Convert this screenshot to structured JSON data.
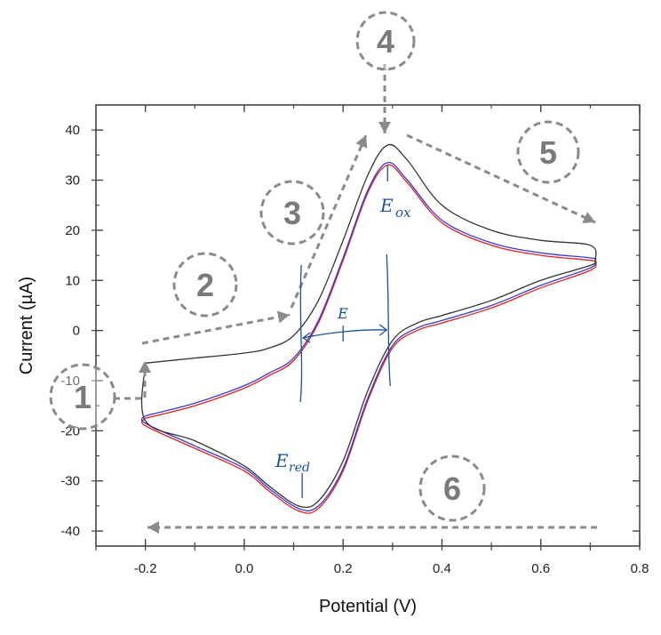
{
  "chart_data": {
    "type": "line",
    "title": "",
    "xlabel": "Potential (V)",
    "ylabel": "Current (µA)",
    "xlim": [
      -0.3,
      0.8
    ],
    "ylim": [
      -43,
      45
    ],
    "xticks": [
      "-0.2",
      "0.0",
      "0.2",
      "0.4",
      "0.6",
      "0.8"
    ],
    "xtick_values": [
      -0.2,
      0.0,
      0.2,
      0.4,
      0.6,
      0.8
    ],
    "yticks": [
      "40",
      "30",
      "20",
      "10",
      "0",
      "-10",
      "-20",
      "-30",
      "-40"
    ],
    "ytick_values": [
      40,
      30,
      20,
      10,
      0,
      -10,
      -20,
      -30,
      -40
    ],
    "grid": false,
    "series": [
      {
        "color": "#333333",
        "x": [
          -0.2,
          -0.1,
          0.0,
          0.05,
          0.1,
          0.15,
          0.2,
          0.25,
          0.29,
          0.33,
          0.4,
          0.5,
          0.6,
          0.7,
          0.71,
          0.7,
          0.6,
          0.5,
          0.4,
          0.35,
          0.3,
          0.25,
          0.2,
          0.15,
          0.11,
          0.05,
          0.0,
          -0.1,
          -0.2,
          -0.2
        ],
        "y": [
          -6.5,
          -5.5,
          -4.5,
          -3.5,
          -1.0,
          6.0,
          18.0,
          31.0,
          37.0,
          34.0,
          25.0,
          20.0,
          18.0,
          17.0,
          14.0,
          13.0,
          10.0,
          6.0,
          3.0,
          1.5,
          -2.0,
          -12.0,
          -26.0,
          -34.0,
          -35.0,
          -31.0,
          -27.0,
          -22.0,
          -18.0,
          -6.5
        ]
      },
      {
        "color": "#3a3ad0",
        "x": [
          -0.2,
          -0.1,
          0.0,
          0.05,
          0.1,
          0.15,
          0.2,
          0.25,
          0.29,
          0.33,
          0.4,
          0.5,
          0.6,
          0.7,
          0.71,
          0.7,
          0.6,
          0.5,
          0.4,
          0.35,
          0.3,
          0.25,
          0.2,
          0.15,
          0.11,
          0.05,
          0.0,
          -0.1,
          -0.2,
          -0.2
        ],
        "y": [
          -17.0,
          -14.5,
          -11.0,
          -8.5,
          -5.5,
          2.0,
          14.5,
          28.0,
          33.5,
          30.0,
          22.0,
          17.5,
          15.5,
          14.5,
          14.0,
          12.5,
          9.0,
          5.0,
          2.0,
          0.5,
          -3.0,
          -13.5,
          -27.5,
          -35.0,
          -35.5,
          -31.5,
          -27.5,
          -23.0,
          -18.5,
          -17.0
        ]
      },
      {
        "color": "#e02020",
        "x": [
          -0.2,
          -0.1,
          0.0,
          0.05,
          0.1,
          0.15,
          0.2,
          0.25,
          0.29,
          0.33,
          0.4,
          0.5,
          0.6,
          0.7,
          0.71,
          0.7,
          0.6,
          0.5,
          0.4,
          0.35,
          0.3,
          0.25,
          0.2,
          0.15,
          0.11,
          0.05,
          0.0,
          -0.1,
          -0.2,
          -0.2
        ],
        "y": [
          -17.5,
          -15.0,
          -11.5,
          -9.0,
          -6.0,
          1.5,
          14.0,
          27.5,
          33.0,
          29.5,
          21.5,
          17.0,
          15.0,
          14.0,
          13.5,
          12.0,
          8.5,
          4.5,
          1.5,
          0.0,
          -3.5,
          -14.0,
          -28.0,
          -35.5,
          -36.0,
          -32.0,
          -28.0,
          -23.5,
          -19.0,
          -17.5
        ]
      }
    ],
    "annotations": {
      "steps": [
        "1",
        "2",
        "3",
        "4",
        "5",
        "6"
      ],
      "labels": {
        "e_ox": "E",
        "e_ox_sub": "ox",
        "e_red": "E",
        "e_red_sub": "red",
        "e_mid": "E"
      },
      "e_ox_x": 0.29,
      "e_red_x": 0.11,
      "e_mid_x": 0.2
    }
  }
}
